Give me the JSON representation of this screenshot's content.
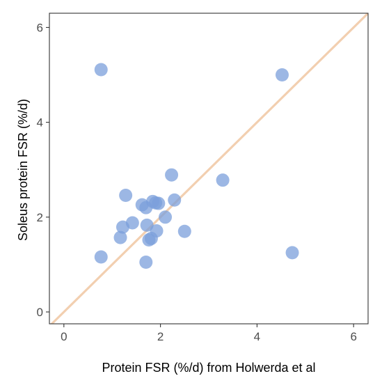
{
  "chart_data": {
    "type": "scatter",
    "title": "",
    "xlabel": "Protein FSR (%/d) from Holwerda et al",
    "ylabel": "Soleus protein FSR (%/d)",
    "xlim": [
      -0.3,
      6.3
    ],
    "ylim": [
      -0.25,
      6.3
    ],
    "xticks": [
      0,
      2,
      4,
      6
    ],
    "yticks": [
      0,
      2,
      4,
      6
    ],
    "xtick_labels": [
      "0",
      "2",
      "4",
      "6"
    ],
    "ytick_labels": [
      "0",
      "2",
      "4",
      "6"
    ],
    "grid": false,
    "legend": "none",
    "reference_line": {
      "type": "identity",
      "slope": 1,
      "intercept": 0,
      "color": "#f2cfb0"
    },
    "point_color": "#7b9fdb",
    "point_opacity": 0.75,
    "series": [
      {
        "points": [
          {
            "x": 0.77,
            "y": 5.11
          },
          {
            "x": 4.52,
            "y": 5.0
          },
          {
            "x": 0.77,
            "y": 1.16
          },
          {
            "x": 1.17,
            "y": 1.57
          },
          {
            "x": 1.22,
            "y": 1.79
          },
          {
            "x": 1.28,
            "y": 2.46
          },
          {
            "x": 1.42,
            "y": 1.88
          },
          {
            "x": 1.62,
            "y": 2.26
          },
          {
            "x": 1.7,
            "y": 2.2
          },
          {
            "x": 1.7,
            "y": 1.05
          },
          {
            "x": 1.72,
            "y": 1.83
          },
          {
            "x": 1.76,
            "y": 1.52
          },
          {
            "x": 1.81,
            "y": 1.55
          },
          {
            "x": 1.84,
            "y": 2.33
          },
          {
            "x": 1.9,
            "y": 2.3
          },
          {
            "x": 1.92,
            "y": 1.71
          },
          {
            "x": 1.96,
            "y": 2.29
          },
          {
            "x": 2.1,
            "y": 2.0
          },
          {
            "x": 2.23,
            "y": 2.89
          },
          {
            "x": 2.29,
            "y": 2.36
          },
          {
            "x": 2.5,
            "y": 1.7
          },
          {
            "x": 3.29,
            "y": 2.78
          },
          {
            "x": 4.73,
            "y": 1.25
          }
        ]
      }
    ]
  }
}
